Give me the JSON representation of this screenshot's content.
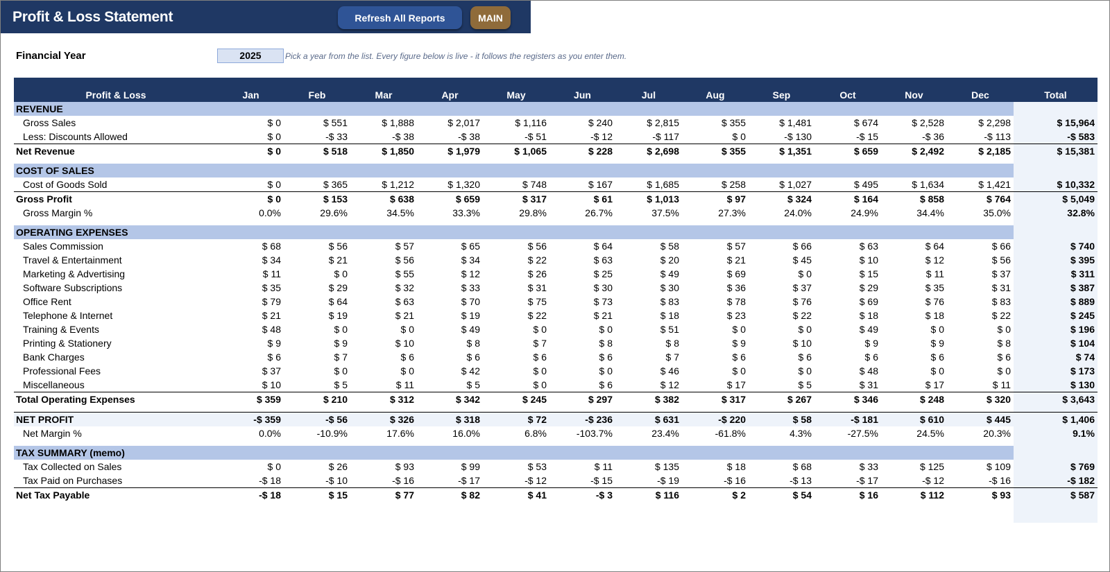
{
  "header": {
    "title": "Profit & Loss Statement",
    "refresh_label": "Refresh All Reports",
    "main_label": "MAIN"
  },
  "financial_year": {
    "label": "Financial Year",
    "value": "2025",
    "hint": "Pick a year from the list. Every figure below is live - it follows the registers as you enter them."
  },
  "columns": [
    "Profit & Loss",
    "Jan",
    "Feb",
    "Mar",
    "Apr",
    "May",
    "Jun",
    "Jul",
    "Aug",
    "Sep",
    "Oct",
    "Nov",
    "Dec",
    "Total"
  ],
  "rows": [
    {
      "type": "section",
      "label": "REVENUE"
    },
    {
      "type": "item",
      "label": "Gross Sales",
      "values": [
        "$ 0",
        "$ 551",
        "$ 1,888",
        "$ 2,017",
        "$ 1,116",
        "$ 240",
        "$ 2,815",
        "$ 355",
        "$ 1,481",
        "$ 674",
        "$ 2,528",
        "$ 2,298"
      ],
      "total": "$ 15,964"
    },
    {
      "type": "item",
      "label": "Less: Discounts Allowed",
      "values": [
        "$ 0",
        "-$ 33",
        "-$ 38",
        "-$ 38",
        "-$ 51",
        "-$ 12",
        "-$ 117",
        "$ 0",
        "-$ 130",
        "-$ 15",
        "-$ 36",
        "-$ 113"
      ],
      "total": "-$ 583"
    },
    {
      "type": "total",
      "label": "Net Revenue",
      "values": [
        "$ 0",
        "$ 518",
        "$ 1,850",
        "$ 1,979",
        "$ 1,065",
        "$ 228",
        "$ 2,698",
        "$ 355",
        "$ 1,351",
        "$ 659",
        "$ 2,492",
        "$ 2,185"
      ],
      "total": "$ 15,381"
    },
    {
      "type": "spacer"
    },
    {
      "type": "section",
      "label": "COST OF SALES"
    },
    {
      "type": "item",
      "label": "Cost of Goods Sold",
      "values": [
        "$ 0",
        "$ 365",
        "$ 1,212",
        "$ 1,320",
        "$ 748",
        "$ 167",
        "$ 1,685",
        "$ 258",
        "$ 1,027",
        "$ 495",
        "$ 1,634",
        "$ 1,421"
      ],
      "total": "$ 10,332"
    },
    {
      "type": "total",
      "label": "Gross Profit",
      "values": [
        "$ 0",
        "$ 153",
        "$ 638",
        "$ 659",
        "$ 317",
        "$ 61",
        "$ 1,013",
        "$ 97",
        "$ 324",
        "$ 164",
        "$ 858",
        "$ 764"
      ],
      "total": "$ 5,049"
    },
    {
      "type": "item",
      "label": "Gross Margin %",
      "values": [
        "0.0%",
        "29.6%",
        "34.5%",
        "33.3%",
        "29.8%",
        "26.7%",
        "37.5%",
        "27.3%",
        "24.0%",
        "24.9%",
        "34.4%",
        "35.0%"
      ],
      "total": "32.8%"
    },
    {
      "type": "spacer"
    },
    {
      "type": "section",
      "label": "OPERATING EXPENSES"
    },
    {
      "type": "item",
      "label": "Sales Commission",
      "values": [
        "$ 68",
        "$ 56",
        "$ 57",
        "$ 65",
        "$ 56",
        "$ 64",
        "$ 58",
        "$ 57",
        "$ 66",
        "$ 63",
        "$ 64",
        "$ 66"
      ],
      "total": "$ 740"
    },
    {
      "type": "item",
      "label": "Travel & Entertainment",
      "values": [
        "$ 34",
        "$ 21",
        "$ 56",
        "$ 34",
        "$ 22",
        "$ 63",
        "$ 20",
        "$ 21",
        "$ 45",
        "$ 10",
        "$ 12",
        "$ 56"
      ],
      "total": "$ 395"
    },
    {
      "type": "item",
      "label": "Marketing & Advertising",
      "values": [
        "$ 11",
        "$ 0",
        "$ 55",
        "$ 12",
        "$ 26",
        "$ 25",
        "$ 49",
        "$ 69",
        "$ 0",
        "$ 15",
        "$ 11",
        "$ 37"
      ],
      "total": "$ 311"
    },
    {
      "type": "item",
      "label": "Software Subscriptions",
      "values": [
        "$ 35",
        "$ 29",
        "$ 32",
        "$ 33",
        "$ 31",
        "$ 30",
        "$ 30",
        "$ 36",
        "$ 37",
        "$ 29",
        "$ 35",
        "$ 31"
      ],
      "total": "$ 387"
    },
    {
      "type": "item",
      "label": "Office Rent",
      "values": [
        "$ 79",
        "$ 64",
        "$ 63",
        "$ 70",
        "$ 75",
        "$ 73",
        "$ 83",
        "$ 78",
        "$ 76",
        "$ 69",
        "$ 76",
        "$ 83"
      ],
      "total": "$ 889"
    },
    {
      "type": "item",
      "label": "Telephone & Internet",
      "values": [
        "$ 21",
        "$ 19",
        "$ 21",
        "$ 19",
        "$ 22",
        "$ 21",
        "$ 18",
        "$ 23",
        "$ 22",
        "$ 18",
        "$ 18",
        "$ 22"
      ],
      "total": "$ 245"
    },
    {
      "type": "item",
      "label": "Training & Events",
      "values": [
        "$ 48",
        "$ 0",
        "$ 0",
        "$ 49",
        "$ 0",
        "$ 0",
        "$ 51",
        "$ 0",
        "$ 0",
        "$ 49",
        "$ 0",
        "$ 0"
      ],
      "total": "$ 196"
    },
    {
      "type": "item",
      "label": "Printing & Stationery",
      "values": [
        "$ 9",
        "$ 9",
        "$ 10",
        "$ 8",
        "$ 7",
        "$ 8",
        "$ 8",
        "$ 9",
        "$ 10",
        "$ 9",
        "$ 9",
        "$ 8"
      ],
      "total": "$ 104"
    },
    {
      "type": "item",
      "label": "Bank Charges",
      "values": [
        "$ 6",
        "$ 7",
        "$ 6",
        "$ 6",
        "$ 6",
        "$ 6",
        "$ 7",
        "$ 6",
        "$ 6",
        "$ 6",
        "$ 6",
        "$ 6"
      ],
      "total": "$ 74"
    },
    {
      "type": "item",
      "label": "Professional Fees",
      "values": [
        "$ 37",
        "$ 0",
        "$ 0",
        "$ 42",
        "$ 0",
        "$ 0",
        "$ 46",
        "$ 0",
        "$ 0",
        "$ 48",
        "$ 0",
        "$ 0"
      ],
      "total": "$ 173"
    },
    {
      "type": "item",
      "label": "Miscellaneous",
      "values": [
        "$ 10",
        "$ 5",
        "$ 11",
        "$ 5",
        "$ 0",
        "$ 6",
        "$ 12",
        "$ 17",
        "$ 5",
        "$ 31",
        "$ 17",
        "$ 11"
      ],
      "total": "$ 130"
    },
    {
      "type": "total",
      "label": "Total Operating Expenses",
      "values": [
        "$ 359",
        "$ 210",
        "$ 312",
        "$ 342",
        "$ 245",
        "$ 297",
        "$ 382",
        "$ 317",
        "$ 267",
        "$ 346",
        "$ 248",
        "$ 320"
      ],
      "total": "$ 3,643"
    },
    {
      "type": "spacer"
    },
    {
      "type": "netprofit",
      "label": "NET PROFIT",
      "values": [
        "-$ 359",
        "-$ 56",
        "$ 326",
        "$ 318",
        "$ 72",
        "-$ 236",
        "$ 631",
        "-$ 220",
        "$ 58",
        "-$ 181",
        "$ 610",
        "$ 445"
      ],
      "total": "$ 1,406"
    },
    {
      "type": "item",
      "label": "Net Margin %",
      "values": [
        "0.0%",
        "-10.9%",
        "17.6%",
        "16.0%",
        "6.8%",
        "-103.7%",
        "23.4%",
        "-61.8%",
        "4.3%",
        "-27.5%",
        "24.5%",
        "20.3%"
      ],
      "total": "9.1%"
    },
    {
      "type": "spacer"
    },
    {
      "type": "section",
      "label": "TAX SUMMARY (memo)"
    },
    {
      "type": "item",
      "label": "Tax Collected on Sales",
      "values": [
        "$ 0",
        "$ 26",
        "$ 93",
        "$ 99",
        "$ 53",
        "$ 11",
        "$ 135",
        "$ 18",
        "$ 68",
        "$ 33",
        "$ 125",
        "$ 109"
      ],
      "total": "$ 769"
    },
    {
      "type": "item",
      "label": "Tax Paid on Purchases",
      "values": [
        "-$ 18",
        "-$ 10",
        "-$ 16",
        "-$ 17",
        "-$ 12",
        "-$ 15",
        "-$ 19",
        "-$ 16",
        "-$ 13",
        "-$ 17",
        "-$ 12",
        "-$ 16"
      ],
      "total": "-$ 182"
    },
    {
      "type": "total",
      "label": "Net Tax Payable",
      "values": [
        "-$ 18",
        "$ 15",
        "$ 77",
        "$ 82",
        "$ 41",
        "-$ 3",
        "$ 116",
        "$ 2",
        "$ 54",
        "$ 16",
        "$ 112",
        "$ 93"
      ],
      "total": "$ 587"
    }
  ]
}
